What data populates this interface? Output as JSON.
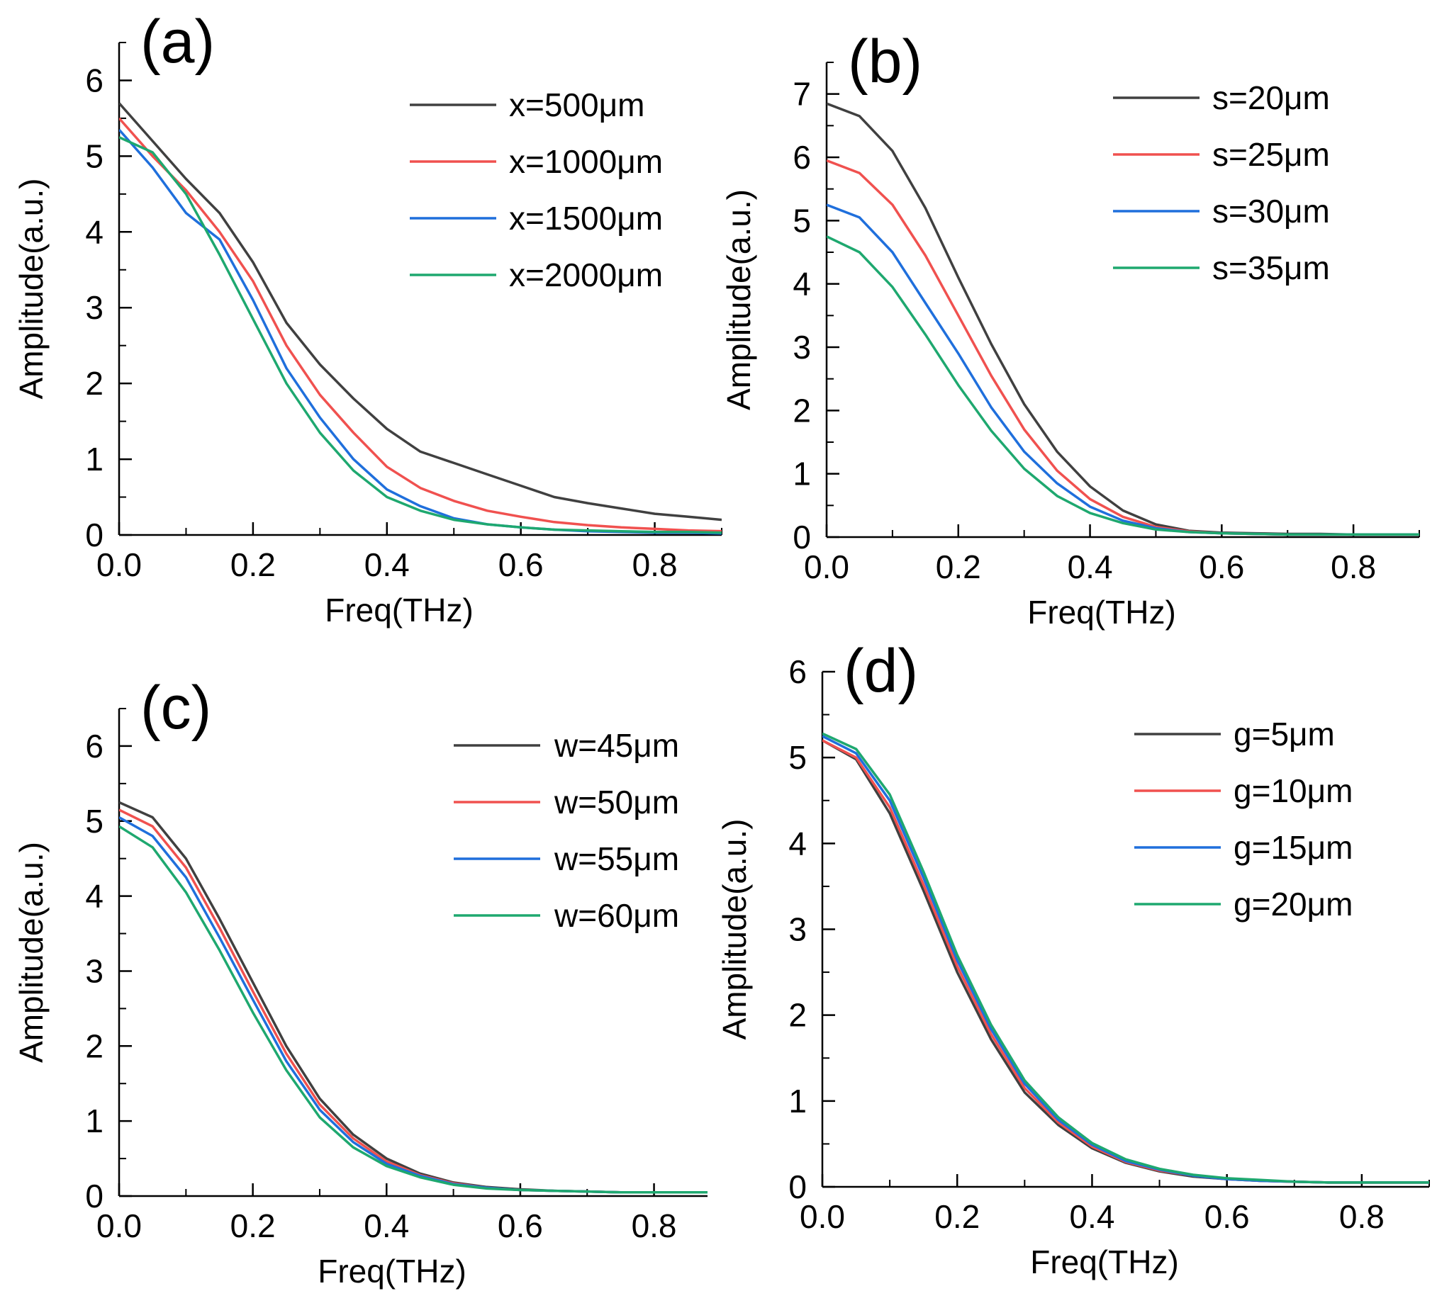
{
  "chart_data": [
    {
      "type": "line",
      "panel_label": "(a)",
      "xlabel": "Freq(THz)",
      "ylabel": "Amplitude(a.u.)",
      "xlim": [
        0,
        0.9
      ],
      "ylim": [
        0,
        6.5
      ],
      "xticks": [
        0.0,
        0.2,
        0.4,
        0.6,
        0.8
      ],
      "xtick_labels": [
        "0.0",
        "0.2",
        "0.4",
        "0.6",
        "0.8"
      ],
      "yticks": [
        0,
        1,
        2,
        3,
        4,
        5,
        6
      ],
      "ytick_labels": [
        "0",
        "1",
        "2",
        "3",
        "4",
        "5",
        "6"
      ],
      "legend_position": "top-right",
      "x": [
        0,
        0.05,
        0.1,
        0.15,
        0.2,
        0.25,
        0.3,
        0.35,
        0.4,
        0.45,
        0.5,
        0.55,
        0.6,
        0.65,
        0.7,
        0.75,
        0.8,
        0.85,
        0.9
      ],
      "series": [
        {
          "name": "x=500μm",
          "color": "#404040",
          "values": [
            5.7,
            5.2,
            4.7,
            4.25,
            3.6,
            2.8,
            2.25,
            1.8,
            1.4,
            1.1,
            0.95,
            0.8,
            0.65,
            0.5,
            0.42,
            0.35,
            0.28,
            0.24,
            0.2
          ]
        },
        {
          "name": "x=1000μm",
          "color": "#f0514f",
          "values": [
            5.5,
            5.0,
            4.55,
            4.0,
            3.35,
            2.5,
            1.85,
            1.35,
            0.9,
            0.62,
            0.45,
            0.32,
            0.24,
            0.17,
            0.13,
            0.1,
            0.08,
            0.06,
            0.05
          ]
        },
        {
          "name": "x=1500μm",
          "color": "#1f6fdc",
          "values": [
            5.35,
            4.85,
            4.25,
            3.9,
            3.1,
            2.2,
            1.55,
            1.0,
            0.6,
            0.38,
            0.22,
            0.14,
            0.1,
            0.07,
            0.05,
            0.04,
            0.03,
            0.03,
            0.02
          ]
        },
        {
          "name": "x=2000μm",
          "color": "#1ea86f",
          "values": [
            5.25,
            5.05,
            4.5,
            3.7,
            2.85,
            2.0,
            1.35,
            0.85,
            0.5,
            0.32,
            0.2,
            0.14,
            0.1,
            0.07,
            0.06,
            0.05,
            0.04,
            0.04,
            0.03
          ]
        }
      ]
    },
    {
      "type": "line",
      "panel_label": "(b)",
      "xlabel": "Freq(THz)",
      "ylabel": "Amplitude(a.u.)",
      "xlim": [
        0,
        0.9
      ],
      "ylim": [
        0,
        7.5
      ],
      "xticks": [
        0.0,
        0.2,
        0.4,
        0.6,
        0.8
      ],
      "xtick_labels": [
        "0.0",
        "0.2",
        "0.4",
        "0.6",
        "0.8"
      ],
      "yticks": [
        0,
        1,
        2,
        3,
        4,
        5,
        6,
        7
      ],
      "ytick_labels": [
        "0",
        "1",
        "2",
        "3",
        "4",
        "5",
        "6",
        "7"
      ],
      "legend_position": "top-right",
      "x": [
        0,
        0.05,
        0.1,
        0.15,
        0.2,
        0.25,
        0.3,
        0.35,
        0.4,
        0.45,
        0.5,
        0.55,
        0.6,
        0.65,
        0.7,
        0.75,
        0.8,
        0.85,
        0.9
      ],
      "series": [
        {
          "name": "s=20μm",
          "color": "#404040",
          "values": [
            6.85,
            6.65,
            6.1,
            5.2,
            4.1,
            3.05,
            2.1,
            1.35,
            0.8,
            0.42,
            0.2,
            0.1,
            0.07,
            0.06,
            0.05,
            0.05,
            0.04,
            0.04,
            0.04
          ]
        },
        {
          "name": "s=25μm",
          "color": "#f0514f",
          "values": [
            5.95,
            5.75,
            5.25,
            4.45,
            3.5,
            2.55,
            1.7,
            1.05,
            0.6,
            0.32,
            0.16,
            0.09,
            0.06,
            0.05,
            0.04,
            0.04,
            0.04,
            0.04,
            0.04
          ]
        },
        {
          "name": "s=30μm",
          "color": "#1f6fdc",
          "values": [
            5.25,
            5.05,
            4.5,
            3.7,
            2.9,
            2.05,
            1.35,
            0.85,
            0.48,
            0.26,
            0.14,
            0.08,
            0.06,
            0.05,
            0.04,
            0.04,
            0.04,
            0.04,
            0.04
          ]
        },
        {
          "name": "s=35μm",
          "color": "#1ea86f",
          "values": [
            4.75,
            4.5,
            3.95,
            3.2,
            2.4,
            1.68,
            1.08,
            0.65,
            0.38,
            0.22,
            0.12,
            0.08,
            0.06,
            0.05,
            0.04,
            0.04,
            0.04,
            0.04,
            0.04
          ]
        }
      ]
    },
    {
      "type": "line",
      "panel_label": "(c)",
      "xlabel": "Freq(THz)",
      "ylabel": "Amplitude(a.u.)",
      "xlim": [
        0,
        0.88
      ],
      "ylim": [
        0,
        6.5
      ],
      "xticks": [
        0.0,
        0.2,
        0.4,
        0.6,
        0.8
      ],
      "xtick_labels": [
        "0.0",
        "0.2",
        "0.4",
        "0.6",
        "0.8"
      ],
      "yticks": [
        0,
        1,
        2,
        3,
        4,
        5,
        6
      ],
      "ytick_labels": [
        "0",
        "1",
        "2",
        "3",
        "4",
        "5",
        "6"
      ],
      "legend_position": "top-right",
      "x": [
        0,
        0.05,
        0.1,
        0.15,
        0.2,
        0.25,
        0.3,
        0.35,
        0.4,
        0.45,
        0.5,
        0.55,
        0.6,
        0.65,
        0.7,
        0.75,
        0.8,
        0.85,
        0.88
      ],
      "series": [
        {
          "name": "w=45μm",
          "color": "#404040",
          "values": [
            5.25,
            5.05,
            4.5,
            3.7,
            2.85,
            2.0,
            1.3,
            0.82,
            0.5,
            0.3,
            0.18,
            0.12,
            0.09,
            0.07,
            0.06,
            0.05,
            0.05,
            0.05,
            0.05
          ]
        },
        {
          "name": "w=50μm",
          "color": "#f0514f",
          "values": [
            5.15,
            4.93,
            4.38,
            3.58,
            2.73,
            1.9,
            1.22,
            0.77,
            0.46,
            0.28,
            0.17,
            0.11,
            0.08,
            0.07,
            0.06,
            0.05,
            0.05,
            0.05,
            0.05
          ]
        },
        {
          "name": "w=55μm",
          "color": "#1f6fdc",
          "values": [
            5.05,
            4.8,
            4.25,
            3.45,
            2.62,
            1.8,
            1.15,
            0.72,
            0.43,
            0.27,
            0.16,
            0.11,
            0.08,
            0.07,
            0.06,
            0.05,
            0.05,
            0.05,
            0.05
          ]
        },
        {
          "name": "w=60μm",
          "color": "#1ea86f",
          "values": [
            4.93,
            4.65,
            4.05,
            3.28,
            2.45,
            1.68,
            1.05,
            0.65,
            0.4,
            0.25,
            0.15,
            0.1,
            0.08,
            0.07,
            0.06,
            0.05,
            0.05,
            0.05,
            0.05
          ]
        }
      ]
    },
    {
      "type": "line",
      "panel_label": "(d)",
      "xlabel": "Freq(THz)",
      "ylabel": "Amplitude(a.u.)",
      "xlim": [
        0,
        0.9
      ],
      "ylim": [
        0,
        6
      ],
      "xticks": [
        0.0,
        0.2,
        0.4,
        0.6,
        0.8
      ],
      "xtick_labels": [
        "0.0",
        "0.2",
        "0.4",
        "0.6",
        "0.8"
      ],
      "yticks": [
        0,
        1,
        2,
        3,
        4,
        5,
        6
      ],
      "ytick_labels": [
        "0",
        "1",
        "2",
        "3",
        "4",
        "5",
        "6"
      ],
      "legend_position": "top-right",
      "x": [
        0,
        0.05,
        0.1,
        0.15,
        0.2,
        0.25,
        0.3,
        0.35,
        0.4,
        0.45,
        0.5,
        0.55,
        0.6,
        0.65,
        0.7,
        0.75,
        0.8,
        0.85,
        0.9
      ],
      "series": [
        {
          "name": "g=5μm",
          "color": "#404040",
          "values": [
            5.2,
            4.98,
            4.35,
            3.45,
            2.5,
            1.72,
            1.1,
            0.72,
            0.45,
            0.28,
            0.18,
            0.12,
            0.09,
            0.07,
            0.06,
            0.05,
            0.05,
            0.05,
            0.05
          ]
        },
        {
          "name": "g=10μm",
          "color": "#f0514f",
          "values": [
            5.2,
            5.0,
            4.42,
            3.52,
            2.57,
            1.78,
            1.15,
            0.75,
            0.47,
            0.29,
            0.19,
            0.13,
            0.09,
            0.07,
            0.06,
            0.05,
            0.05,
            0.05,
            0.05
          ]
        },
        {
          "name": "g=15μm",
          "color": "#1f6fdc",
          "values": [
            5.25,
            5.05,
            4.5,
            3.6,
            2.64,
            1.84,
            1.2,
            0.78,
            0.49,
            0.3,
            0.2,
            0.13,
            0.09,
            0.07,
            0.06,
            0.05,
            0.05,
            0.05,
            0.05
          ]
        },
        {
          "name": "g=20μm",
          "color": "#1ea86f",
          "values": [
            5.28,
            5.1,
            4.57,
            3.67,
            2.7,
            1.89,
            1.24,
            0.81,
            0.51,
            0.32,
            0.21,
            0.14,
            0.1,
            0.08,
            0.06,
            0.05,
            0.05,
            0.05,
            0.05
          ]
        }
      ]
    }
  ]
}
